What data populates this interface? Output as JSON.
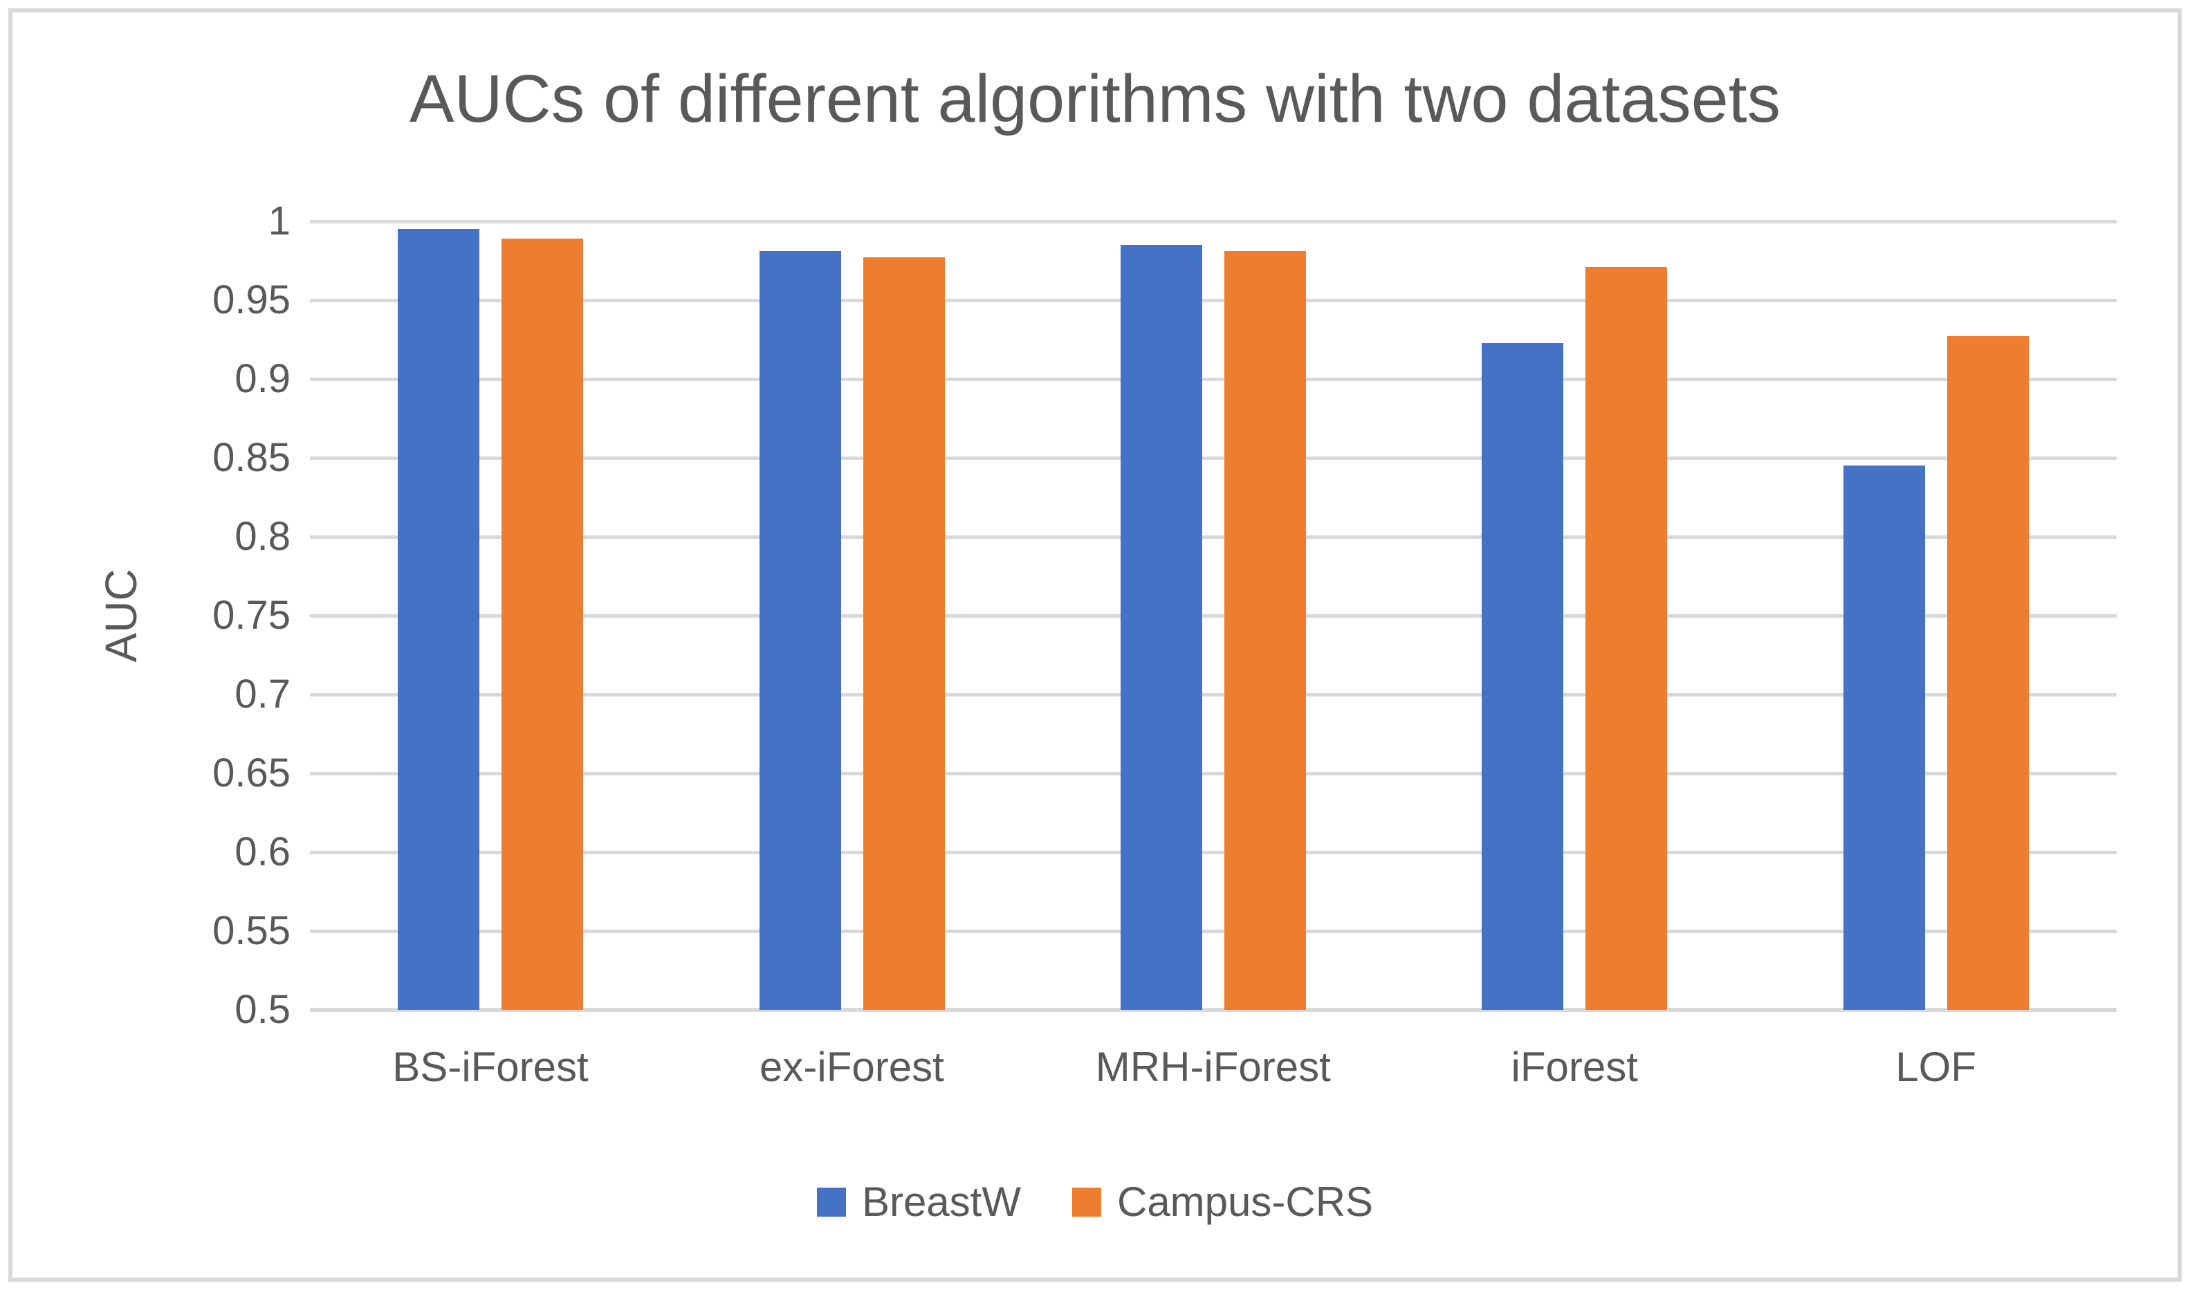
{
  "chart_data": {
    "type": "bar",
    "title": "AUCs of different algorithms with two datasets",
    "categories": [
      "BS-iForest",
      "ex-iForest",
      "MRH-iForest",
      "iForest",
      "LOF"
    ],
    "series": [
      {
        "name": "BreastW",
        "color": "#4472C4",
        "values": [
          0.995,
          0.981,
          0.985,
          0.923,
          0.845
        ]
      },
      {
        "name": "Campus-CRS",
        "color": "#ED7D31",
        "values": [
          0.989,
          0.977,
          0.981,
          0.971,
          0.927
        ]
      }
    ],
    "xlabel": "",
    "ylabel": "AUC",
    "ylim": [
      0.5,
      1.0
    ],
    "ytick_step": 0.05,
    "yticks": [
      "1",
      "0.95",
      "0.9",
      "0.85",
      "0.8",
      "0.75",
      "0.7",
      "0.65",
      "0.6",
      "0.55",
      "0.5"
    ],
    "grid": true,
    "legend_position": "bottom-center",
    "colors": {
      "gridline": "#D9D9D9",
      "axis_line": "#D9D9D9",
      "text": "#595959",
      "frame_border": "#D9D9D9",
      "background": "#FFFFFF"
    }
  }
}
